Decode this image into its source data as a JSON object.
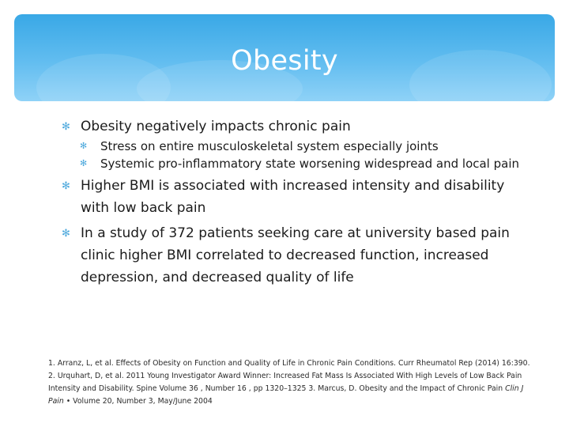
{
  "title": "Obesity",
  "icons": {
    "bullet": "asterisk-bullet-icon"
  },
  "bullets": [
    {
      "text": "Obesity negatively impacts chronic pain",
      "children": [
        "Stress on entire musculoskeletal system especially joints",
        "Systemic pro-inflammatory state worsening widespread and local pain"
      ]
    },
    {
      "text": "Higher BMI is associated with increased intensity and disability with low back pain",
      "children": []
    },
    {
      "text": "In a study of 372 patients seeking care at university based pain clinic higher BMI correlated to decreased function, increased depression, and decreased quality of life",
      "children": []
    }
  ],
  "references": {
    "part1": "1.  Arranz, L, et al.  Effects of Obesity on Function and Quality of Life in Chronic Pain Conditions. Curr Rheumatol Rep (2014) 16:390.  2.  Urquhart, D, et al. 2011 Young Investigator Award Winner: Increased Fat Mass Is Associated With High Levels of Low Back Pain Intensity and Disability. Spine Volume 36 , Number 16 , pp 1320–1325 3.  Marcus, D.  Obesity and the Impact of Chronic Pain ",
    "journal": "Clin J Pain",
    "part2": " • Volume 20, Number 3, May/June 2004"
  },
  "colors": {
    "banner_top": "#39a8e6",
    "banner_bottom": "#8fd2f7",
    "bullet": "#4ca8dc",
    "text": "#1b1b1b"
  }
}
